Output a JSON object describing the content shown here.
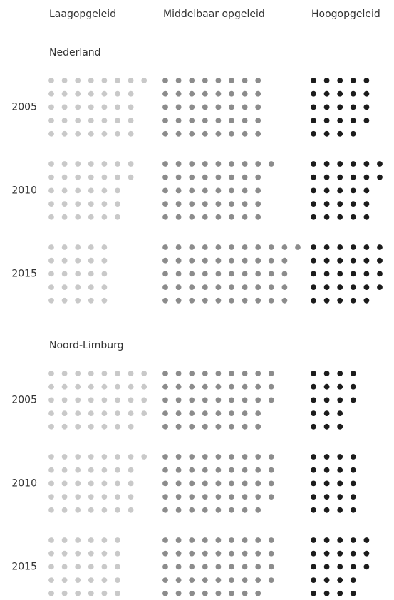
{
  "chart_data": {
    "type": "dot-matrix",
    "series": [
      {
        "name": "Laagopgeleid",
        "color": "#c9c9c9"
      },
      {
        "name": "Middelbaar opgeleid",
        "color": "#8c8c8c"
      },
      {
        "name": "Hoogopgeleid",
        "color": "#1c1c1c"
      }
    ],
    "groups": [
      {
        "name": "Nederland",
        "categories": [
          "2005",
          "2010",
          "2015"
        ],
        "values": [
          [
            36,
            40,
            24
          ],
          [
            32,
            41,
            27
          ],
          [
            25,
            51,
            29
          ]
        ]
      },
      {
        "name": "Noord-Limburg",
        "categories": [
          "2005",
          "2010",
          "2015"
        ],
        "values": [
          [
            39,
            43,
            18
          ],
          [
            36,
            44,
            20
          ],
          [
            30,
            44,
            23
          ]
        ]
      }
    ]
  }
}
